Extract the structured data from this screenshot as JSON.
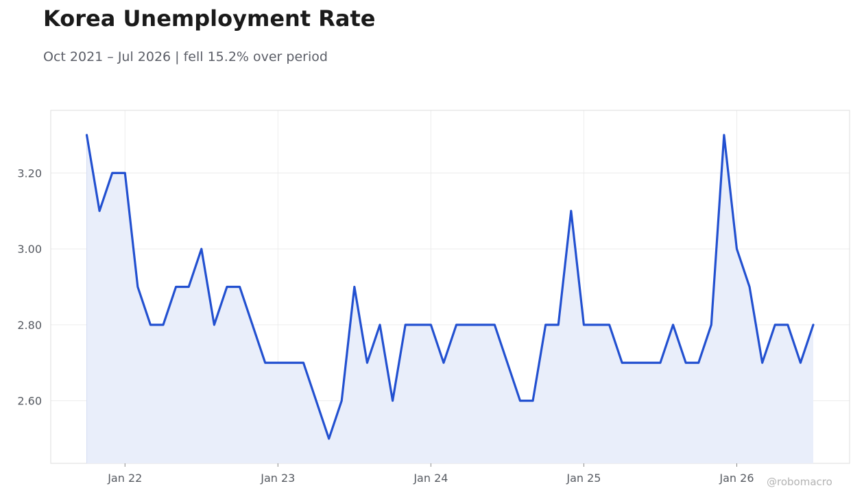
{
  "title": "Korea Unemployment Rate",
  "subtitle": "Oct 2021 – Jul 2026 | fell 15.2% over period",
  "watermark": "@robomacro",
  "colors": {
    "line": "#2250d0",
    "fill": "#e9eefa",
    "grid": "#ececec",
    "frame": "#dddddd"
  },
  "chart_data": {
    "type": "area",
    "title": "Korea Unemployment Rate",
    "subtitle": "Oct 2021 – Jul 2026 | fell 15.2% over period",
    "xlabel": "",
    "ylabel": "",
    "x_start": "2021-10",
    "x_end": "2026-07",
    "x_ticks": [
      "Jan 22",
      "Jan 23",
      "Jan 24",
      "Jan 25",
      "Jan 26"
    ],
    "y_ticks": [
      "2.60",
      "2.80",
      "3.00",
      "3.20"
    ],
    "ylim": [
      2.435,
      3.365
    ],
    "grid": true,
    "legend": "none",
    "series": [
      {
        "x": [
          "2021-10",
          "2021-11",
          "2021-12",
          "2022-01",
          "2022-02",
          "2022-03",
          "2022-04",
          "2022-05",
          "2022-06",
          "2022-07",
          "2022-08",
          "2022-09",
          "2022-10",
          "2022-11",
          "2022-12",
          "2023-01",
          "2023-02",
          "2023-03",
          "2023-04",
          "2023-05",
          "2023-06",
          "2023-07",
          "2023-08",
          "2023-09",
          "2023-10",
          "2023-11",
          "2023-12",
          "2024-01",
          "2024-02",
          "2024-03",
          "2024-04",
          "2024-05",
          "2024-06",
          "2024-07",
          "2024-08",
          "2024-09",
          "2024-10",
          "2024-11",
          "2024-12",
          "2025-01",
          "2025-02",
          "2025-03",
          "2025-04",
          "2025-05",
          "2025-06",
          "2025-07",
          "2025-08",
          "2025-09",
          "2025-10",
          "2025-11",
          "2025-12",
          "2026-01",
          "2026-02",
          "2026-03",
          "2026-04",
          "2026-05",
          "2026-06",
          "2026-07"
        ],
        "values": [
          3.3,
          3.1,
          3.2,
          3.2,
          2.9,
          2.8,
          2.8,
          2.9,
          2.9,
          3.0,
          2.8,
          2.9,
          2.9,
          2.8,
          2.7,
          2.7,
          2.7,
          2.7,
          2.6,
          2.5,
          2.6,
          2.9,
          2.7,
          2.8,
          2.6,
          2.8,
          2.8,
          2.8,
          2.7,
          2.8,
          2.8,
          2.8,
          2.8,
          2.7,
          2.6,
          2.6,
          2.8,
          2.8,
          3.1,
          2.8,
          2.8,
          2.8,
          2.7,
          2.7,
          2.7,
          2.7,
          2.8,
          2.7,
          2.7,
          2.8,
          3.3,
          3.0,
          2.9,
          2.7,
          2.8,
          2.8,
          2.7,
          2.8
        ]
      }
    ]
  }
}
